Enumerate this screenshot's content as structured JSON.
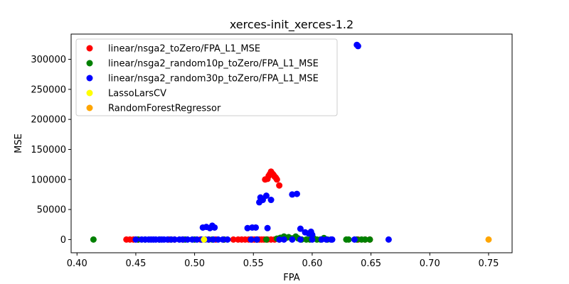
{
  "chart_data": {
    "type": "scatter",
    "title": "xerces-init_xerces-1.2",
    "xlabel": "FPA",
    "ylabel": "MSE",
    "xlim": [
      0.395,
      0.77
    ],
    "ylim": [
      -22000,
      342000
    ],
    "xticks": [
      0.4,
      0.45,
      0.5,
      0.55,
      0.6,
      0.65,
      0.7,
      0.75
    ],
    "xtick_labels": [
      "0.40",
      "0.45",
      "0.50",
      "0.55",
      "0.60",
      "0.65",
      "0.70",
      "0.75"
    ],
    "yticks": [
      0,
      50000,
      100000,
      150000,
      200000,
      250000,
      300000
    ],
    "ytick_labels": [
      "0",
      "50000",
      "100000",
      "150000",
      "200000",
      "250000",
      "300000"
    ],
    "legend_position": "top-left",
    "series": [
      {
        "name": "linear/nsga2_toZero/FPA_L1_MSE",
        "color": "#ff0000",
        "points": [
          [
            0.442,
            0
          ],
          [
            0.445,
            0
          ],
          [
            0.448,
            0
          ],
          [
            0.452,
            0
          ],
          [
            0.478,
            0
          ],
          [
            0.483,
            0
          ],
          [
            0.49,
            0
          ],
          [
            0.505,
            0
          ],
          [
            0.512,
            0
          ],
          [
            0.518,
            0
          ],
          [
            0.525,
            0
          ],
          [
            0.533,
            0
          ],
          [
            0.537,
            0
          ],
          [
            0.54,
            0
          ],
          [
            0.543,
            0
          ],
          [
            0.546,
            0
          ],
          [
            0.549,
            0
          ],
          [
            0.551,
            0
          ],
          [
            0.553,
            0
          ],
          [
            0.555,
            0
          ],
          [
            0.557,
            0
          ],
          [
            0.559,
            0
          ],
          [
            0.562,
            0
          ],
          [
            0.565,
            0
          ],
          [
            0.568,
            0
          ],
          [
            0.572,
            0
          ],
          [
            0.639,
            0
          ],
          [
            0.645,
            0
          ],
          [
            0.649,
            0
          ],
          [
            0.56,
            100000
          ],
          [
            0.562,
            101000
          ],
          [
            0.563,
            106000
          ],
          [
            0.564,
            109000
          ],
          [
            0.565,
            113000
          ],
          [
            0.566,
            110000
          ],
          [
            0.567,
            108000
          ],
          [
            0.568,
            105000
          ],
          [
            0.569,
            103000
          ],
          [
            0.57,
            100000
          ],
          [
            0.572,
            90000
          ]
        ]
      },
      {
        "name": "linear/nsga2_random10p_toZero/FPA_L1_MSE",
        "color": "#008000",
        "points": [
          [
            0.414,
            0
          ],
          [
            0.452,
            0
          ],
          [
            0.458,
            0
          ],
          [
            0.47,
            0
          ],
          [
            0.48,
            0
          ],
          [
            0.492,
            0
          ],
          [
            0.5,
            0
          ],
          [
            0.515,
            0
          ],
          [
            0.525,
            0
          ],
          [
            0.553,
            0
          ],
          [
            0.561,
            0
          ],
          [
            0.57,
            1500
          ],
          [
            0.573,
            3000
          ],
          [
            0.576,
            5000
          ],
          [
            0.578,
            3000
          ],
          [
            0.58,
            4000
          ],
          [
            0.583,
            2000
          ],
          [
            0.586,
            5000
          ],
          [
            0.588,
            2000
          ],
          [
            0.591,
            0
          ],
          [
            0.595,
            0
          ],
          [
            0.598,
            0
          ],
          [
            0.601,
            2500
          ],
          [
            0.604,
            0
          ],
          [
            0.607,
            0
          ],
          [
            0.61,
            2500
          ],
          [
            0.613,
            0
          ],
          [
            0.629,
            0
          ],
          [
            0.631,
            0
          ],
          [
            0.638,
            0
          ],
          [
            0.642,
            0
          ],
          [
            0.645,
            0
          ],
          [
            0.649,
            0
          ]
        ]
      },
      {
        "name": "linear/nsga2_random30p_toZero/FPA_L1_MSE",
        "color": "#0000ff",
        "points": [
          [
            0.45,
            0
          ],
          [
            0.455,
            0
          ],
          [
            0.458,
            0
          ],
          [
            0.461,
            0
          ],
          [
            0.463,
            0
          ],
          [
            0.465,
            0
          ],
          [
            0.467,
            0
          ],
          [
            0.47,
            0
          ],
          [
            0.472,
            0
          ],
          [
            0.474,
            0
          ],
          [
            0.477,
            0
          ],
          [
            0.48,
            0
          ],
          [
            0.483,
            0
          ],
          [
            0.487,
            0
          ],
          [
            0.49,
            0
          ],
          [
            0.494,
            0
          ],
          [
            0.498,
            0
          ],
          [
            0.502,
            0
          ],
          [
            0.506,
            0
          ],
          [
            0.509,
            0
          ],
          [
            0.512,
            0
          ],
          [
            0.516,
            0
          ],
          [
            0.52,
            0
          ],
          [
            0.524,
            0
          ],
          [
            0.528,
            0
          ],
          [
            0.548,
            0
          ],
          [
            0.553,
            0
          ],
          [
            0.572,
            0
          ],
          [
            0.576,
            0
          ],
          [
            0.583,
            0
          ],
          [
            0.59,
            0
          ],
          [
            0.6,
            0
          ],
          [
            0.608,
            0
          ],
          [
            0.612,
            0
          ],
          [
            0.616,
            0
          ],
          [
            0.617,
            0
          ],
          [
            0.636,
            0
          ],
          [
            0.665,
            0
          ],
          [
            0.507,
            20000
          ],
          [
            0.51,
            21000
          ],
          [
            0.513,
            19000
          ],
          [
            0.515,
            23000
          ],
          [
            0.517,
            20000
          ],
          [
            0.545,
            19000
          ],
          [
            0.549,
            20000
          ],
          [
            0.552,
            20000
          ],
          [
            0.562,
            19000
          ],
          [
            0.555,
            62000
          ],
          [
            0.556,
            70000
          ],
          [
            0.558,
            66000
          ],
          [
            0.561,
            73000
          ],
          [
            0.565,
            66000
          ],
          [
            0.583,
            75000
          ],
          [
            0.587,
            76000
          ],
          [
            0.59,
            18000
          ],
          [
            0.594,
            12000
          ],
          [
            0.597,
            10000
          ],
          [
            0.599,
            13000
          ],
          [
            0.6,
            8000
          ],
          [
            0.638,
            324000
          ],
          [
            0.639,
            322000
          ]
        ]
      },
      {
        "name": "LassoLarsCV",
        "color": "#ffff00",
        "points": [
          [
            0.508,
            0
          ]
        ]
      },
      {
        "name": "RandomForestRegressor",
        "color": "#ffa500",
        "points": [
          [
            0.75,
            0
          ]
        ]
      }
    ]
  }
}
